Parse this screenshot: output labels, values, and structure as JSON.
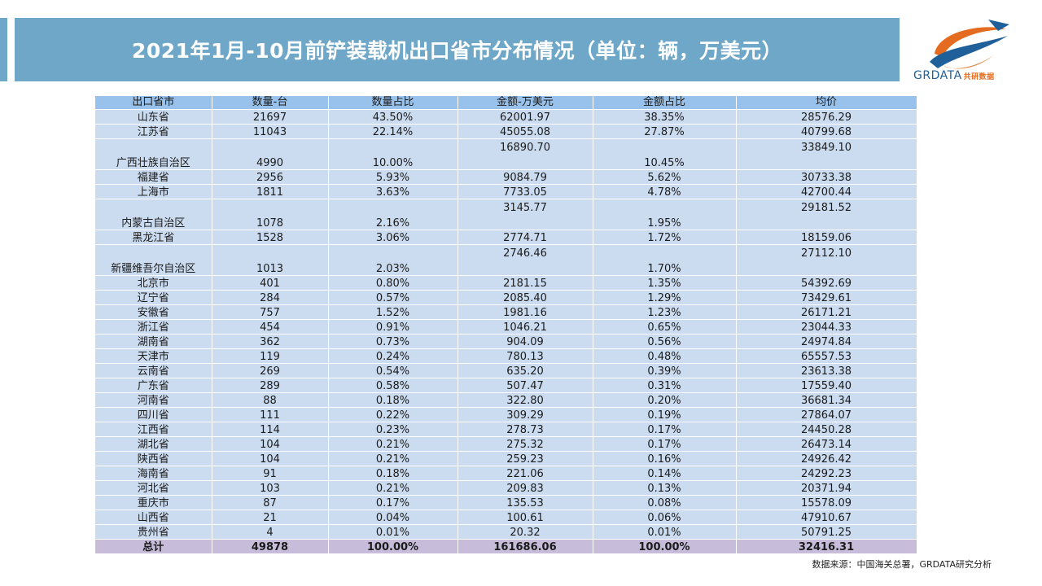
{
  "title": "2021年1月-10月前铲装载机出口省市分布情况（单位：辆，万美元）",
  "logo": {
    "text": "GRDATA",
    "cn": "共研数据"
  },
  "table": {
    "headers": [
      "出口省市",
      "数量-台",
      "数量占比",
      "金额-万美元",
      "金额占比",
      "均价"
    ],
    "rows": [
      {
        "province": "山东省",
        "qty": "21697",
        "qty_share": "43.50%",
        "amount": "62001.97",
        "amount_share": "38.35%",
        "avg": "28576.29",
        "tall": false
      },
      {
        "province": "江苏省",
        "qty": "11043",
        "qty_share": "22.14%",
        "amount": "45055.08",
        "amount_share": "27.87%",
        "avg": "40799.68",
        "tall": false
      },
      {
        "province": "广西壮族自治区",
        "qty": "4990",
        "qty_share": "10.00%",
        "amount": "16890.70",
        "amount_share": "10.45%",
        "avg": "33849.10",
        "tall": true
      },
      {
        "province": "福建省",
        "qty": "2956",
        "qty_share": "5.93%",
        "amount": "9084.79",
        "amount_share": "5.62%",
        "avg": "30733.38",
        "tall": false
      },
      {
        "province": "上海市",
        "qty": "1811",
        "qty_share": "3.63%",
        "amount": "7733.05",
        "amount_share": "4.78%",
        "avg": "42700.44",
        "tall": false
      },
      {
        "province": "内蒙古自治区",
        "qty": "1078",
        "qty_share": "2.16%",
        "amount": "3145.77",
        "amount_share": "1.95%",
        "avg": "29181.52",
        "tall": true
      },
      {
        "province": "黑龙江省",
        "qty": "1528",
        "qty_share": "3.06%",
        "amount": "2774.71",
        "amount_share": "1.72%",
        "avg": "18159.06",
        "tall": false
      },
      {
        "province": "新疆维吾尔自治区",
        "qty": "1013",
        "qty_share": "2.03%",
        "amount": "2746.46",
        "amount_share": "1.70%",
        "avg": "27112.10",
        "tall": true
      },
      {
        "province": "北京市",
        "qty": "401",
        "qty_share": "0.80%",
        "amount": "2181.15",
        "amount_share": "1.35%",
        "avg": "54392.69",
        "tall": false
      },
      {
        "province": "辽宁省",
        "qty": "284",
        "qty_share": "0.57%",
        "amount": "2085.40",
        "amount_share": "1.29%",
        "avg": "73429.61",
        "tall": false
      },
      {
        "province": "安徽省",
        "qty": "757",
        "qty_share": "1.52%",
        "amount": "1981.16",
        "amount_share": "1.23%",
        "avg": "26171.21",
        "tall": false
      },
      {
        "province": "浙江省",
        "qty": "454",
        "qty_share": "0.91%",
        "amount": "1046.21",
        "amount_share": "0.65%",
        "avg": "23044.33",
        "tall": false
      },
      {
        "province": "湖南省",
        "qty": "362",
        "qty_share": "0.73%",
        "amount": "904.09",
        "amount_share": "0.56%",
        "avg": "24974.84",
        "tall": false
      },
      {
        "province": "天津市",
        "qty": "119",
        "qty_share": "0.24%",
        "amount": "780.13",
        "amount_share": "0.48%",
        "avg": "65557.53",
        "tall": false
      },
      {
        "province": "云南省",
        "qty": "269",
        "qty_share": "0.54%",
        "amount": "635.20",
        "amount_share": "0.39%",
        "avg": "23613.38",
        "tall": false
      },
      {
        "province": "广东省",
        "qty": "289",
        "qty_share": "0.58%",
        "amount": "507.47",
        "amount_share": "0.31%",
        "avg": "17559.40",
        "tall": false
      },
      {
        "province": "河南省",
        "qty": "88",
        "qty_share": "0.18%",
        "amount": "322.80",
        "amount_share": "0.20%",
        "avg": "36681.34",
        "tall": false
      },
      {
        "province": "四川省",
        "qty": "111",
        "qty_share": "0.22%",
        "amount": "309.29",
        "amount_share": "0.19%",
        "avg": "27864.07",
        "tall": false
      },
      {
        "province": "江西省",
        "qty": "114",
        "qty_share": "0.23%",
        "amount": "278.73",
        "amount_share": "0.17%",
        "avg": "24450.28",
        "tall": false
      },
      {
        "province": "湖北省",
        "qty": "104",
        "qty_share": "0.21%",
        "amount": "275.32",
        "amount_share": "0.17%",
        "avg": "26473.14",
        "tall": false
      },
      {
        "province": "陕西省",
        "qty": "104",
        "qty_share": "0.21%",
        "amount": "259.23",
        "amount_share": "0.16%",
        "avg": "24926.42",
        "tall": false
      },
      {
        "province": "海南省",
        "qty": "91",
        "qty_share": "0.18%",
        "amount": "221.06",
        "amount_share": "0.14%",
        "avg": "24292.23",
        "tall": false
      },
      {
        "province": "河北省",
        "qty": "103",
        "qty_share": "0.21%",
        "amount": "209.83",
        "amount_share": "0.13%",
        "avg": "20371.94",
        "tall": false
      },
      {
        "province": "重庆市",
        "qty": "87",
        "qty_share": "0.17%",
        "amount": "135.53",
        "amount_share": "0.08%",
        "avg": "15578.09",
        "tall": false
      },
      {
        "province": "山西省",
        "qty": "21",
        "qty_share": "0.04%",
        "amount": "100.61",
        "amount_share": "0.06%",
        "avg": "47910.67",
        "tall": false
      },
      {
        "province": "贵州省",
        "qty": "4",
        "qty_share": "0.01%",
        "amount": "20.32",
        "amount_share": "0.01%",
        "avg": "50791.25",
        "tall": false
      }
    ],
    "total": {
      "province": "总计",
      "qty": "49878",
      "qty_share": "100.00%",
      "amount": "161686.06",
      "amount_share": "100.00%",
      "avg": "32416.31"
    }
  },
  "footer": "数据来源：中国海关总署，GRDATA研究分析",
  "colors": {
    "title_bg": "#6ea7c7",
    "header_bg": "#98c2ec",
    "row_bg": "#cbdcf0",
    "total_bg": "#c7bddb"
  }
}
